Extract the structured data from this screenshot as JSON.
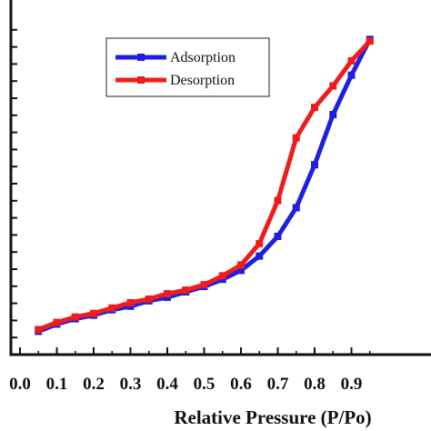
{
  "chart_data": {
    "type": "line",
    "title": "",
    "xlabel": "Relative Pressure (P/Po)",
    "ylabel": "",
    "xlim": [
      0.0,
      0.95
    ],
    "ylim": [
      0,
      10
    ],
    "x_ticks": [
      "0.0",
      "0.1",
      "0.2",
      "0.3",
      "0.4",
      "0.5",
      "0.6",
      "0.7",
      "0.8",
      "0.9"
    ],
    "x_tick_values": [
      0.0,
      0.1,
      0.2,
      0.3,
      0.4,
      0.5,
      0.6,
      0.7,
      0.8,
      0.9
    ],
    "y_tick_count": 20,
    "grid": false,
    "legend_position": "top-left",
    "series": [
      {
        "name": "Adsorption",
        "color": "#1f1fe0",
        "marker": "square",
        "x": [
          0.05,
          0.1,
          0.15,
          0.2,
          0.25,
          0.3,
          0.35,
          0.4,
          0.45,
          0.5,
          0.55,
          0.6,
          0.65,
          0.7,
          0.75,
          0.8,
          0.85,
          0.9,
          0.95
        ],
        "y": [
          0.65,
          0.85,
          1.0,
          1.1,
          1.25,
          1.35,
          1.5,
          1.6,
          1.75,
          1.9,
          2.1,
          2.35,
          2.75,
          3.3,
          4.1,
          5.3,
          6.7,
          7.8,
          8.8
        ]
      },
      {
        "name": "Desorption",
        "color": "#ee1c1c",
        "marker": "square",
        "x": [
          0.05,
          0.1,
          0.15,
          0.2,
          0.25,
          0.3,
          0.35,
          0.4,
          0.45,
          0.5,
          0.55,
          0.6,
          0.65,
          0.7,
          0.75,
          0.8,
          0.85,
          0.9,
          0.95
        ],
        "y": [
          0.7,
          0.9,
          1.05,
          1.15,
          1.3,
          1.45,
          1.55,
          1.7,
          1.8,
          1.95,
          2.2,
          2.5,
          3.1,
          4.3,
          6.05,
          6.9,
          7.5,
          8.2,
          8.75
        ]
      }
    ]
  }
}
